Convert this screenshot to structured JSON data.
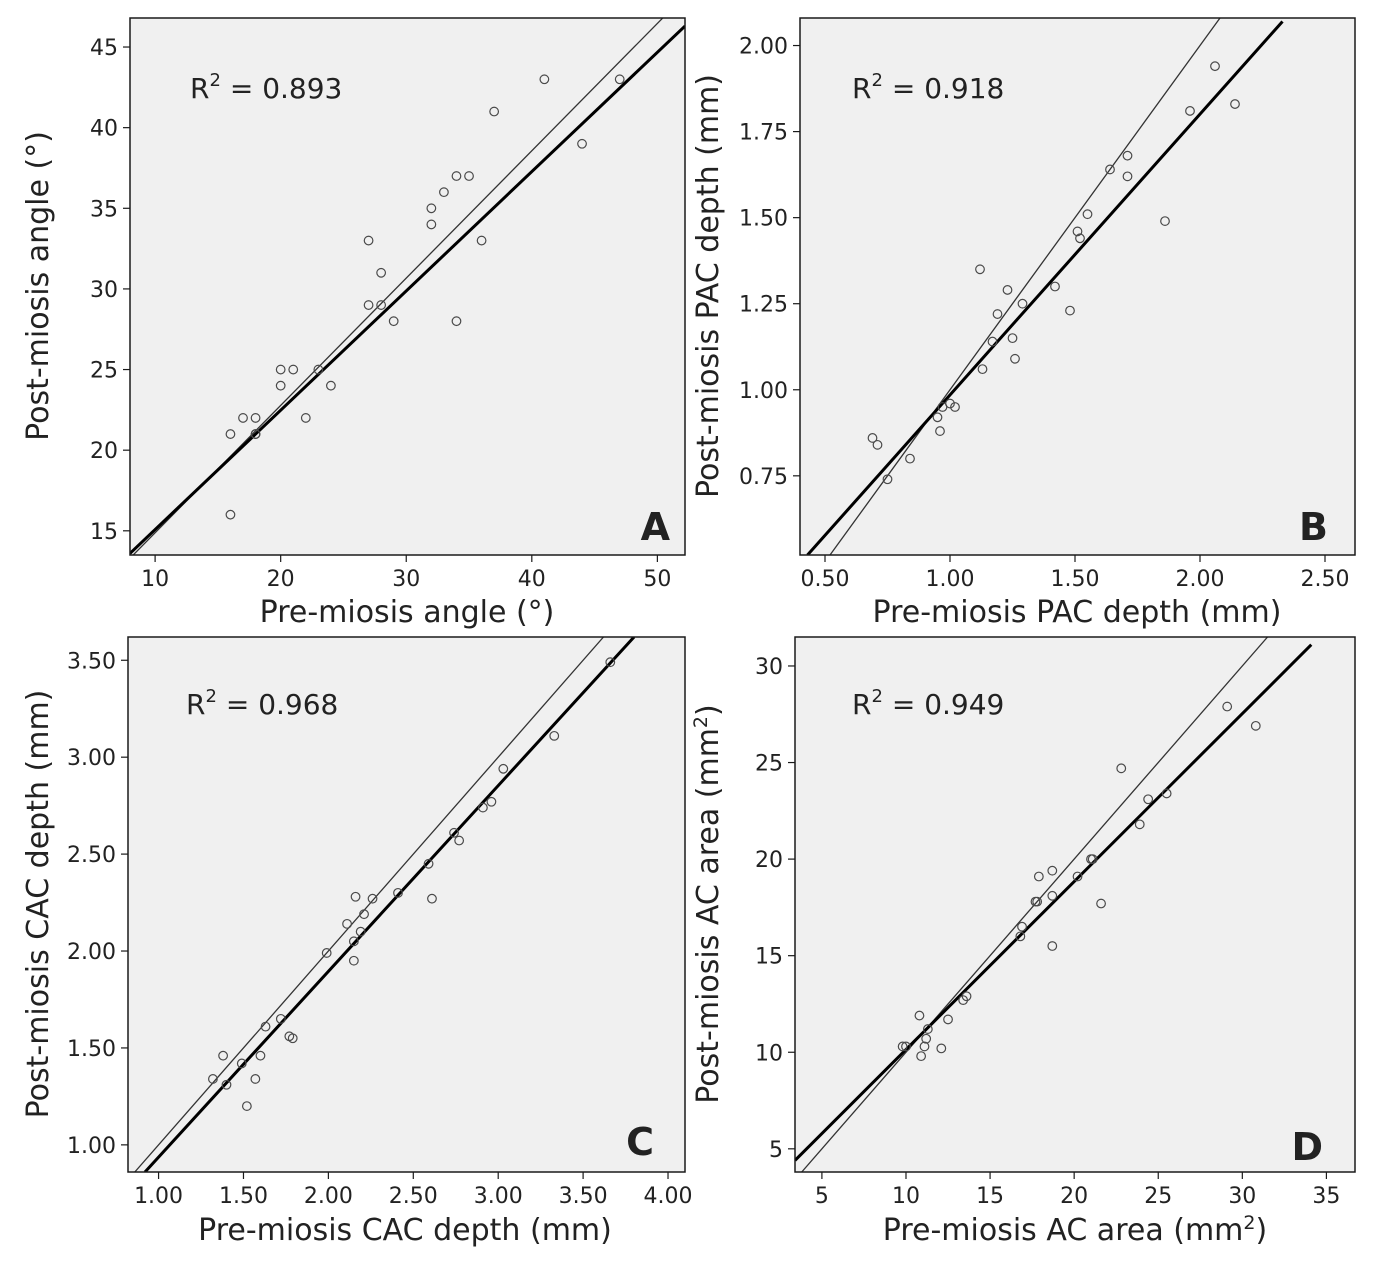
{
  "colors": {
    "plot_background": "#f0f0f0",
    "frame": "#1a1a1a",
    "points": "#4a4a4a",
    "fit_line": "#000000",
    "identity_line": "#333333"
  },
  "chart_data": [
    {
      "type": "scatter",
      "panel": "A",
      "xlabel": "Pre-miosis angle (°)",
      "ylabel": "Post-miosis angle (°)",
      "r2_label": "0.893",
      "xlim": [
        8,
        52.2
      ],
      "ylim": [
        13.5,
        46.8
      ],
      "xticks": [
        10,
        20,
        30,
        40,
        50
      ],
      "yticks": [
        15,
        20,
        25,
        30,
        35,
        40,
        45
      ],
      "xtick_labels": [
        "10",
        "20",
        "30",
        "40",
        "50"
      ],
      "ytick_labels": [
        "15",
        "20",
        "25",
        "30",
        "35",
        "40",
        "45"
      ],
      "points": [
        [
          16,
          16
        ],
        [
          16,
          21
        ],
        [
          17,
          22
        ],
        [
          18,
          22
        ],
        [
          18,
          21
        ],
        [
          18,
          21
        ],
        [
          20,
          25
        ],
        [
          20,
          24
        ],
        [
          21,
          25
        ],
        [
          22,
          22
        ],
        [
          23,
          25
        ],
        [
          24,
          24
        ],
        [
          27,
          33
        ],
        [
          27,
          29
        ],
        [
          28,
          31
        ],
        [
          28,
          29
        ],
        [
          29,
          28
        ],
        [
          32,
          35
        ],
        [
          32,
          34
        ],
        [
          33,
          36
        ],
        [
          34,
          37
        ],
        [
          34,
          28
        ],
        [
          35,
          37
        ],
        [
          36,
          33
        ],
        [
          37,
          41
        ],
        [
          41,
          43
        ],
        [
          44,
          39
        ],
        [
          47,
          43
        ]
      ],
      "fit_line": [
        [
          8,
          13.6
        ],
        [
          52.2,
          46.3
        ]
      ],
      "identity_line": [
        [
          8,
          13.3
        ],
        [
          52.2,
          48.2
        ]
      ]
    },
    {
      "type": "scatter",
      "panel": "B",
      "xlabel": "Pre-miosis PAC depth (mm)",
      "ylabel": "Post-miosis PAC depth (mm)",
      "r2_label": "0.918",
      "xlim": [
        0.4,
        2.62
      ],
      "ylim": [
        0.52,
        2.08
      ],
      "xticks": [
        0.5,
        1.0,
        1.5,
        2.0,
        2.5
      ],
      "yticks": [
        0.75,
        1.0,
        1.25,
        1.5,
        1.75,
        2.0
      ],
      "xtick_labels": [
        "0.50",
        "1.00",
        "1.50",
        "2.00",
        "2.50"
      ],
      "ytick_labels": [
        "0.75",
        "1.00",
        "1.25",
        "1.50",
        "1.75",
        "2.00"
      ],
      "points": [
        [
          0.69,
          0.86
        ],
        [
          0.71,
          0.84
        ],
        [
          0.75,
          0.74
        ],
        [
          0.84,
          0.8
        ],
        [
          0.95,
          0.92
        ],
        [
          0.96,
          0.88
        ],
        [
          0.97,
          0.95
        ],
        [
          1.0,
          0.96
        ],
        [
          1.02,
          0.95
        ],
        [
          1.12,
          1.35
        ],
        [
          1.13,
          1.06
        ],
        [
          1.17,
          1.14
        ],
        [
          1.19,
          1.22
        ],
        [
          1.23,
          1.29
        ],
        [
          1.25,
          1.15
        ],
        [
          1.26,
          1.09
        ],
        [
          1.29,
          1.25
        ],
        [
          1.42,
          1.3
        ],
        [
          1.48,
          1.23
        ],
        [
          1.51,
          1.46
        ],
        [
          1.52,
          1.44
        ],
        [
          1.55,
          1.51
        ],
        [
          1.64,
          1.64
        ],
        [
          1.71,
          1.68
        ],
        [
          1.71,
          1.62
        ],
        [
          1.86,
          1.49
        ],
        [
          1.96,
          1.81
        ],
        [
          2.06,
          1.94
        ],
        [
          2.14,
          1.83
        ]
      ],
      "fit_line": [
        [
          0.43,
          0.52
        ],
        [
          2.33,
          2.07
        ]
      ],
      "identity_line": [
        [
          0.52,
          0.52
        ],
        [
          2.08,
          2.08
        ]
      ]
    },
    {
      "type": "scatter",
      "panel": "C",
      "xlabel": "Pre-miosis CAC depth (mm)",
      "ylabel": "Post-miosis CAC depth (mm)",
      "r2_label": "0.968",
      "xlim": [
        0.82,
        4.1
      ],
      "ylim": [
        0.86,
        3.62
      ],
      "xticks": [
        1.0,
        1.5,
        2.0,
        2.5,
        3.0,
        3.5,
        4.0
      ],
      "yticks": [
        1.0,
        1.5,
        2.0,
        2.5,
        3.0,
        3.5
      ],
      "xtick_labels": [
        "1.00",
        "1.50",
        "2.00",
        "2.50",
        "3.00",
        "3.50",
        "4.00"
      ],
      "ytick_labels": [
        "1.00",
        "1.50",
        "2.00",
        "2.50",
        "3.00",
        "3.50"
      ],
      "points": [
        [
          1.32,
          1.34
        ],
        [
          1.38,
          1.46
        ],
        [
          1.4,
          1.31
        ],
        [
          1.49,
          1.42
        ],
        [
          1.52,
          1.2
        ],
        [
          1.57,
          1.34
        ],
        [
          1.6,
          1.46
        ],
        [
          1.63,
          1.61
        ],
        [
          1.72,
          1.65
        ],
        [
          1.77,
          1.56
        ],
        [
          1.79,
          1.55
        ],
        [
          1.99,
          1.99
        ],
        [
          2.11,
          2.14
        ],
        [
          2.15,
          2.05
        ],
        [
          2.15,
          1.95
        ],
        [
          2.16,
          2.28
        ],
        [
          2.19,
          2.1
        ],
        [
          2.21,
          2.19
        ],
        [
          2.26,
          2.27
        ],
        [
          2.41,
          2.3
        ],
        [
          2.59,
          2.45
        ],
        [
          2.61,
          2.27
        ],
        [
          2.74,
          2.61
        ],
        [
          2.77,
          2.57
        ],
        [
          2.91,
          2.74
        ],
        [
          2.96,
          2.77
        ],
        [
          3.03,
          2.94
        ],
        [
          3.33,
          3.11
        ],
        [
          3.66,
          3.49
        ]
      ],
      "fit_line": [
        [
          0.92,
          0.86
        ],
        [
          3.8,
          3.62
        ]
      ],
      "identity_line": [
        [
          0.86,
          0.86
        ],
        [
          3.62,
          3.62
        ]
      ]
    },
    {
      "type": "scatter",
      "panel": "D",
      "xlabel": "Pre-miosis AC area (mm²)",
      "ylabel": "Post-miosis AC area (mm²)",
      "r2_label": "0.949",
      "xlim": [
        3.4,
        36.7
      ],
      "ylim": [
        3.8,
        31.5
      ],
      "xticks": [
        5,
        10,
        15,
        20,
        25,
        30,
        35
      ],
      "yticks": [
        5,
        10,
        15,
        20,
        25,
        30
      ],
      "xtick_labels": [
        "5",
        "10",
        "15",
        "20",
        "25",
        "30",
        "35"
      ],
      "ytick_labels": [
        "5",
        "10",
        "15",
        "20",
        "25",
        "30"
      ],
      "points": [
        [
          9.8,
          10.3
        ],
        [
          10,
          10.3
        ],
        [
          10.8,
          11.9
        ],
        [
          10.9,
          9.8
        ],
        [
          11.1,
          10.3
        ],
        [
          11.2,
          10.7
        ],
        [
          11.3,
          11.2
        ],
        [
          12.1,
          10.2
        ],
        [
          12.5,
          11.7
        ],
        [
          13.4,
          12.7
        ],
        [
          13.6,
          12.9
        ],
        [
          16.8,
          16
        ],
        [
          16.9,
          16.5
        ],
        [
          17.7,
          17.8
        ],
        [
          17.8,
          17.8
        ],
        [
          17.9,
          19.1
        ],
        [
          18.7,
          15.5
        ],
        [
          18.7,
          18.1
        ],
        [
          18.7,
          19.4
        ],
        [
          20.2,
          19.1
        ],
        [
          21,
          20
        ],
        [
          21.1,
          20
        ],
        [
          21.6,
          17.7
        ],
        [
          22.8,
          24.7
        ],
        [
          23.9,
          21.8
        ],
        [
          24.4,
          23.1
        ],
        [
          25.5,
          23.4
        ],
        [
          29.1,
          27.9
        ],
        [
          30.8,
          26.9
        ]
      ],
      "fit_line": [
        [
          3.4,
          4.4
        ],
        [
          34.1,
          31.1
        ]
      ],
      "identity_line": [
        [
          3.8,
          3.8
        ],
        [
          31.5,
          31.5
        ]
      ]
    }
  ]
}
